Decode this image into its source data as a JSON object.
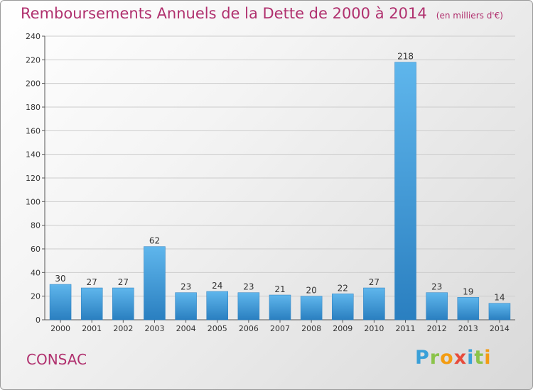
{
  "header": {
    "title": "Remboursements Annuels de la Dette de 2000 à 2014",
    "unit": "(en milliers d'€)"
  },
  "footer": {
    "commune": "CONSAC",
    "logo": [
      "P",
      "r",
      "o",
      "x",
      "i",
      "t",
      "i"
    ],
    "logo_colors": [
      "#3aa0d8",
      "#8bc34a",
      "#f39c12",
      "#e74c3c",
      "#3aa0d8",
      "#8bc34a",
      "#f39c12"
    ]
  },
  "chart_data": {
    "type": "bar",
    "title": "Remboursements Annuels de la Dette de 2000 à 2014",
    "categories": [
      "2000",
      "2001",
      "2002",
      "2003",
      "2004",
      "2005",
      "2006",
      "2007",
      "2008",
      "2009",
      "2010",
      "2011",
      "2012",
      "2013",
      "2014"
    ],
    "values": [
      30,
      27,
      27,
      62,
      23,
      24,
      23,
      21,
      20,
      22,
      27,
      218,
      23,
      19,
      14
    ],
    "ylim": [
      0,
      240
    ],
    "yticks": [
      0,
      20,
      40,
      60,
      80,
      100,
      120,
      140,
      160,
      180,
      200,
      220,
      240
    ],
    "grid": true,
    "bar_color": "#3a9ad9"
  }
}
